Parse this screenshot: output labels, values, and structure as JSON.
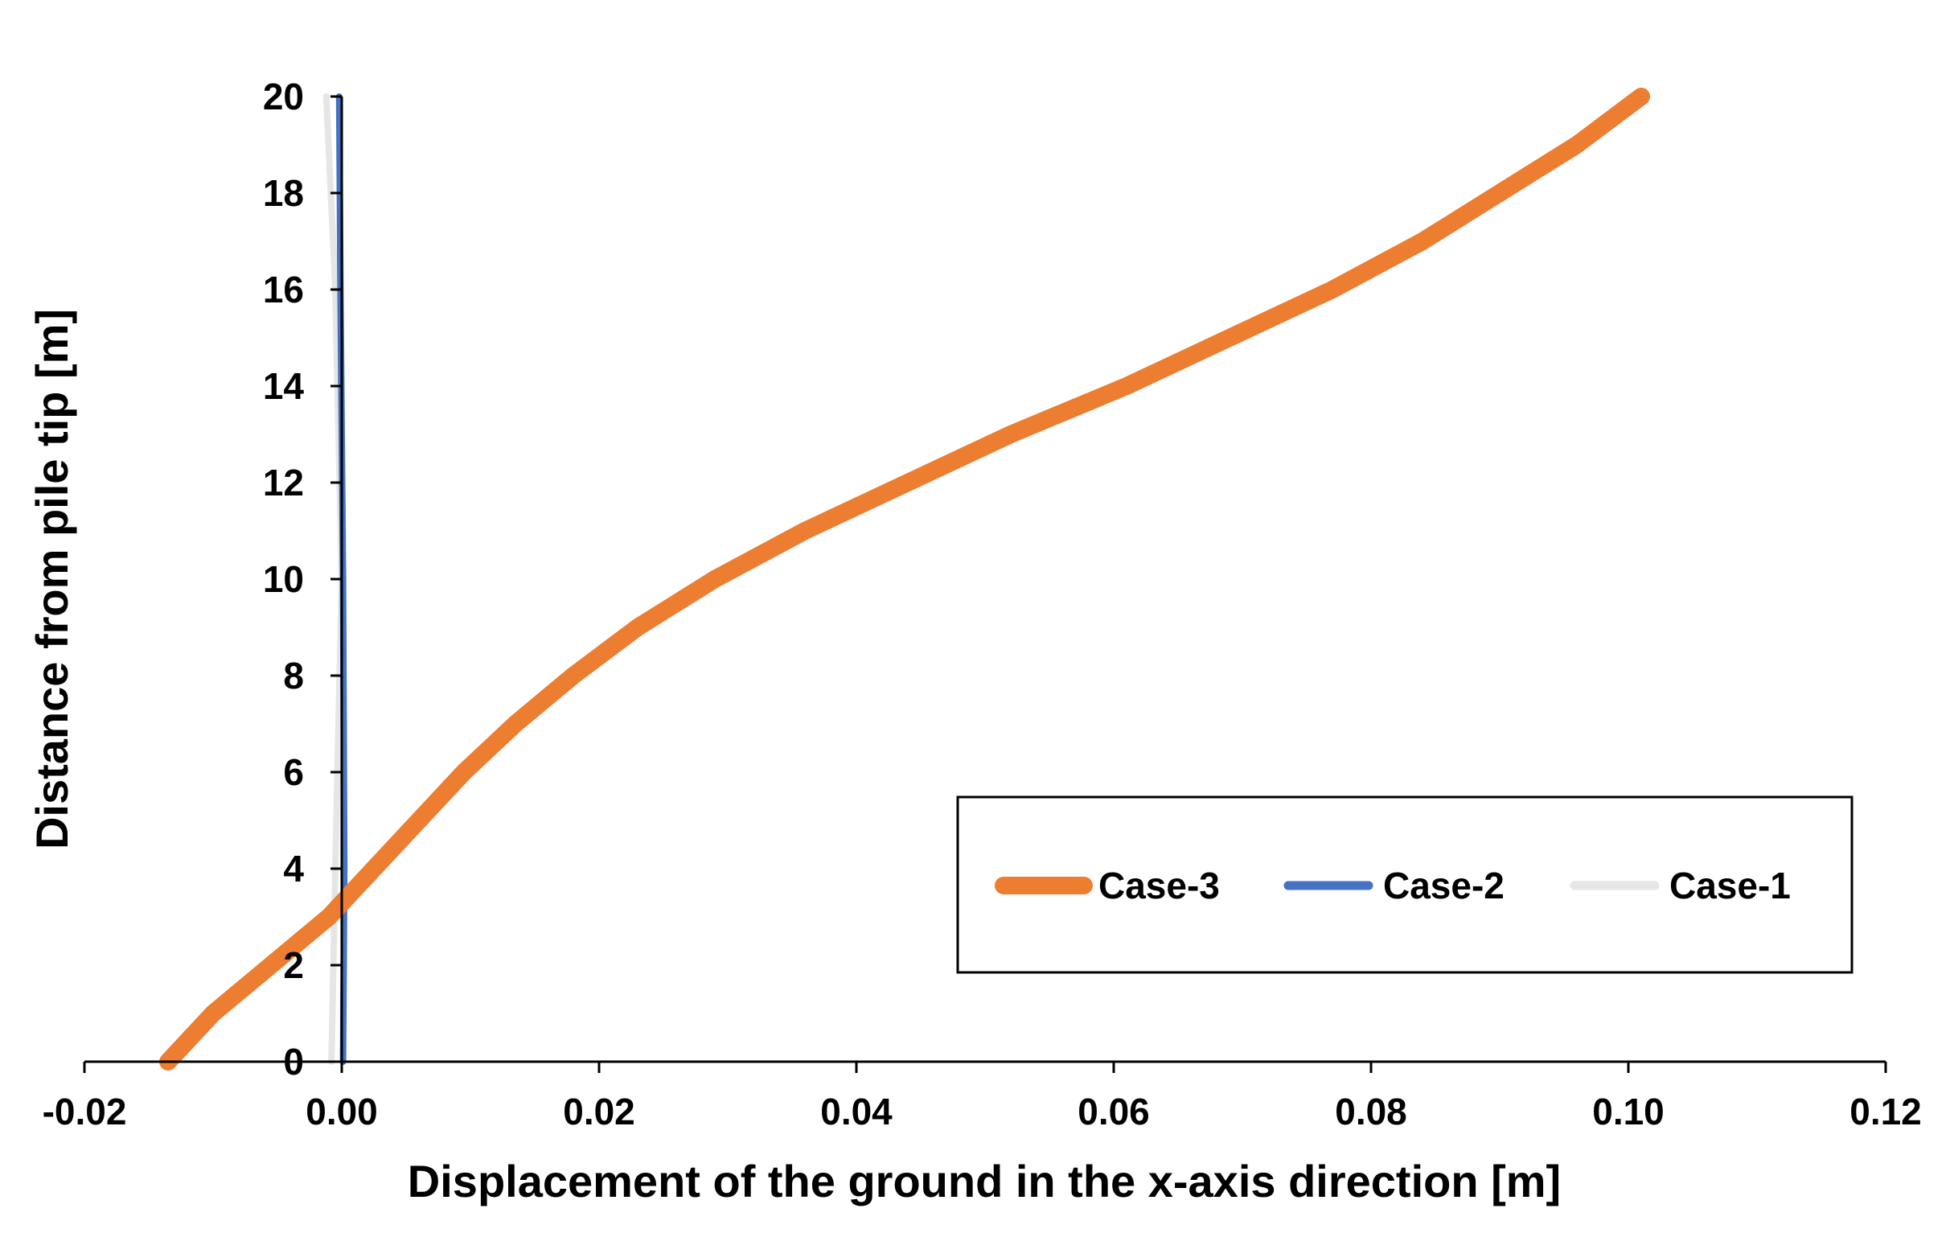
{
  "chart_data": {
    "type": "line",
    "xlabel": "Displacement of the ground in the x-axis direction [m]",
    "ylabel": "Distance from pile tip [m]",
    "xlim": [
      -0.02,
      0.12
    ],
    "ylim": [
      0,
      20
    ],
    "x_ticks": [
      "-0.02",
      "0.00",
      "0.02",
      "0.04",
      "0.06",
      "0.08",
      "0.10",
      "0.12"
    ],
    "y_ticks": [
      "0",
      "2",
      "4",
      "6",
      "8",
      "10",
      "12",
      "14",
      "16",
      "18",
      "20"
    ],
    "grid": false,
    "legend_position": "lower-right",
    "series": [
      {
        "name": "Case-3",
        "color": "#ED7D31",
        "points": [
          {
            "x": -0.0135,
            "y": 0
          },
          {
            "x": -0.01,
            "y": 1
          },
          {
            "x": -0.0055,
            "y": 2
          },
          {
            "x": -0.001,
            "y": 3
          },
          {
            "x": 0.0025,
            "y": 4
          },
          {
            "x": 0.006,
            "y": 5
          },
          {
            "x": 0.0095,
            "y": 6
          },
          {
            "x": 0.0135,
            "y": 7
          },
          {
            "x": 0.018,
            "y": 8
          },
          {
            "x": 0.023,
            "y": 9
          },
          {
            "x": 0.029,
            "y": 10
          },
          {
            "x": 0.036,
            "y": 11
          },
          {
            "x": 0.044,
            "y": 12
          },
          {
            "x": 0.052,
            "y": 13
          },
          {
            "x": 0.061,
            "y": 14
          },
          {
            "x": 0.069,
            "y": 15
          },
          {
            "x": 0.077,
            "y": 16
          },
          {
            "x": 0.084,
            "y": 17
          },
          {
            "x": 0.09,
            "y": 18
          },
          {
            "x": 0.096,
            "y": 19
          },
          {
            "x": 0.101,
            "y": 20
          }
        ]
      },
      {
        "name": "Case-2",
        "color": "#4472C4",
        "points": [
          {
            "x": 0.0001,
            "y": 0
          },
          {
            "x": 0.0002,
            "y": 4
          },
          {
            "x": 0.0001,
            "y": 10
          },
          {
            "x": -0.0001,
            "y": 16
          },
          {
            "x": -0.0002,
            "y": 20
          }
        ]
      },
      {
        "name": "Case-1",
        "color": "#E7E6E6",
        "points": [
          {
            "x": -0.0008,
            "y": 0
          },
          {
            "x": -0.0005,
            "y": 4
          },
          {
            "x": 0.0,
            "y": 10
          },
          {
            "x": -0.0005,
            "y": 16
          },
          {
            "x": -0.0012,
            "y": 20
          }
        ]
      }
    ]
  }
}
